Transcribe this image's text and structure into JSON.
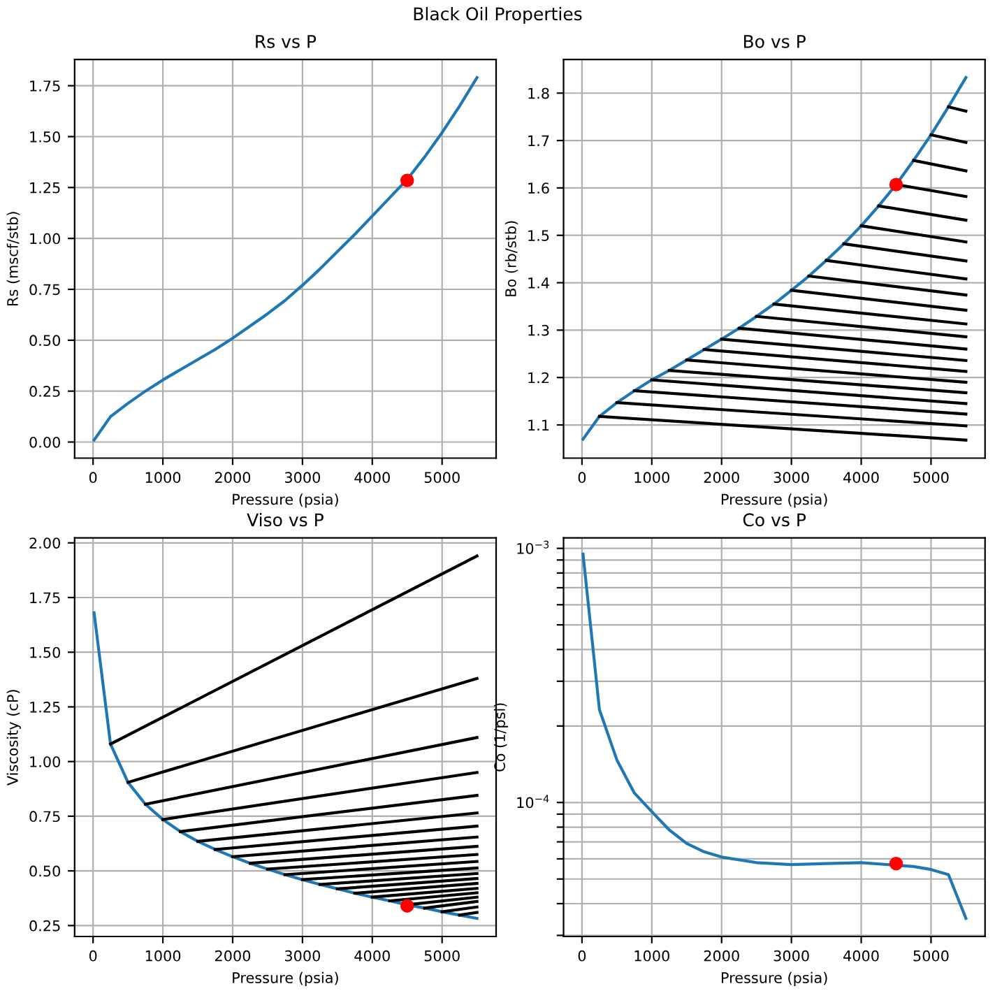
{
  "chart_data": [
    {
      "type": "other",
      "title": "Black Oil Properties"
    },
    {
      "type": "line",
      "title": "Rs vs P",
      "xlabel": "Pressure (psia)",
      "ylabel": "Rs (mscf/stb)",
      "xlim": [
        -264,
        5774
      ],
      "xticks": [
        0,
        1000,
        2000,
        3000,
        4000,
        5000
      ],
      "ylim": [
        -0.079,
        1.879
      ],
      "yticks": [
        {
          "value": 0,
          "label": "0.00"
        },
        {
          "value": 0.25,
          "label": "0.25"
        },
        {
          "value": 0.5,
          "label": "0.50"
        },
        {
          "value": 0.75,
          "label": "0.75"
        },
        {
          "value": 1,
          "label": "1.00"
        },
        {
          "value": 1.25,
          "label": "1.25"
        },
        {
          "value": 1.5,
          "label": "1.50"
        },
        {
          "value": 1.75,
          "label": "1.75"
        }
      ],
      "grid": true,
      "series": [
        {
          "color": "#1f77b4",
          "marker": "none",
          "x": [
            15,
            250,
            500,
            750,
            1000,
            1250,
            1500,
            1750,
            2000,
            2250,
            2500,
            2750,
            3000,
            3250,
            3500,
            3750,
            4000,
            4250,
            4500,
            4750,
            5000,
            5250,
            5500
          ],
          "values": [
            0.01,
            0.125,
            0.19,
            0.25,
            0.305,
            0.355,
            0.405,
            0.455,
            0.51,
            0.57,
            0.63,
            0.695,
            0.77,
            0.85,
            0.935,
            1.02,
            1.11,
            1.2,
            1.29,
            1.4,
            1.52,
            1.65,
            1.79
          ]
        },
        {
          "type": "scatter",
          "marker": "circle",
          "color": "#ff0000",
          "x": [
            4500
          ],
          "values": [
            1.285
          ]
        }
      ]
    },
    {
      "type": "line",
      "title": "Bo vs P",
      "xlabel": "Pressure (psia)",
      "ylabel": "Bo (rb/stb)",
      "xlim": [
        -264,
        5774
      ],
      "xticks": [
        0,
        1000,
        2000,
        3000,
        4000,
        5000
      ],
      "ylim": [
        1.03,
        1.871
      ],
      "yticks": [
        1.1,
        1.2,
        1.3,
        1.4,
        1.5,
        1.6,
        1.7,
        1.8
      ],
      "grid": true,
      "series": [
        {
          "color": "#1f77b4",
          "marker": "none",
          "x": [
            15,
            250,
            500,
            750,
            1000,
            1250,
            1500,
            1750,
            2000,
            2250,
            2500,
            2750,
            3000,
            3250,
            3500,
            3750,
            4000,
            4250,
            4500,
            4750,
            5000,
            5250,
            5500
          ],
          "values": [
            1.07,
            1.118,
            1.147,
            1.172,
            1.195,
            1.215,
            1.237,
            1.259,
            1.281,
            1.304,
            1.329,
            1.355,
            1.384,
            1.414,
            1.447,
            1.482,
            1.52,
            1.562,
            1.607,
            1.658,
            1.712,
            1.771,
            1.833
          ]
        },
        {
          "color": "#000000",
          "marker": "none",
          "x": [
            250,
            5500
          ],
          "values": [
            1.118,
            1.068
          ]
        },
        {
          "color": "#000000",
          "marker": "none",
          "x": [
            500,
            5500
          ],
          "values": [
            1.147,
            1.098
          ]
        },
        {
          "color": "#000000",
          "marker": "none",
          "x": [
            750,
            5500
          ],
          "values": [
            1.172,
            1.123
          ]
        },
        {
          "color": "#000000",
          "marker": "none",
          "x": [
            1000,
            5500
          ],
          "values": [
            1.195,
            1.145
          ]
        },
        {
          "color": "#000000",
          "marker": "none",
          "x": [
            1250,
            5500
          ],
          "values": [
            1.215,
            1.168
          ]
        },
        {
          "color": "#000000",
          "marker": "none",
          "x": [
            1500,
            5500
          ],
          "values": [
            1.237,
            1.19
          ]
        },
        {
          "color": "#000000",
          "marker": "none",
          "x": [
            1750,
            5500
          ],
          "values": [
            1.259,
            1.213
          ]
        },
        {
          "color": "#000000",
          "marker": "none",
          "x": [
            2000,
            5500
          ],
          "values": [
            1.281,
            1.236
          ]
        },
        {
          "color": "#000000",
          "marker": "none",
          "x": [
            2250,
            5500
          ],
          "values": [
            1.304,
            1.26
          ]
        },
        {
          "color": "#000000",
          "marker": "none",
          "x": [
            2500,
            5500
          ],
          "values": [
            1.329,
            1.286
          ]
        },
        {
          "color": "#000000",
          "marker": "none",
          "x": [
            2750,
            5500
          ],
          "values": [
            1.355,
            1.313
          ]
        },
        {
          "color": "#000000",
          "marker": "none",
          "x": [
            3000,
            5500
          ],
          "values": [
            1.384,
            1.342
          ]
        },
        {
          "color": "#000000",
          "marker": "none",
          "x": [
            3250,
            5500
          ],
          "values": [
            1.414,
            1.374
          ]
        },
        {
          "color": "#000000",
          "marker": "none",
          "x": [
            3500,
            5500
          ],
          "values": [
            1.447,
            1.408
          ]
        },
        {
          "color": "#000000",
          "marker": "none",
          "x": [
            3750,
            5500
          ],
          "values": [
            1.482,
            1.446
          ]
        },
        {
          "color": "#000000",
          "marker": "none",
          "x": [
            4000,
            5500
          ],
          "values": [
            1.52,
            1.486
          ]
        },
        {
          "color": "#000000",
          "marker": "none",
          "x": [
            4250,
            5500
          ],
          "values": [
            1.562,
            1.532
          ]
        },
        {
          "color": "#000000",
          "marker": "none",
          "x": [
            4500,
            5500
          ],
          "values": [
            1.607,
            1.582
          ]
        },
        {
          "color": "#000000",
          "marker": "none",
          "x": [
            4750,
            5500
          ],
          "values": [
            1.658,
            1.636
          ]
        },
        {
          "color": "#000000",
          "marker": "none",
          "x": [
            5000,
            5500
          ],
          "values": [
            1.712,
            1.696
          ]
        },
        {
          "color": "#000000",
          "marker": "none",
          "x": [
            5250,
            5500
          ],
          "values": [
            1.771,
            1.762
          ]
        },
        {
          "type": "scatter",
          "marker": "circle",
          "color": "#ff0000",
          "x": [
            4500
          ],
          "values": [
            1.607
          ]
        }
      ]
    },
    {
      "type": "line",
      "title": "Viso vs P",
      "xlabel": "Pressure (psia)",
      "ylabel": "Viscosity (cP)",
      "xlim": [
        -264,
        5774
      ],
      "xticks": [
        0,
        1000,
        2000,
        3000,
        4000,
        5000
      ],
      "ylim": [
        0.2,
        2.023
      ],
      "yticks": [
        {
          "value": 0.25,
          "label": "0.25"
        },
        {
          "value": 0.5,
          "label": "0.50"
        },
        {
          "value": 0.75,
          "label": "0.75"
        },
        {
          "value": 1,
          "label": "1.00"
        },
        {
          "value": 1.25,
          "label": "1.25"
        },
        {
          "value": 1.5,
          "label": "1.50"
        },
        {
          "value": 1.75,
          "label": "1.75"
        },
        {
          "value": 2,
          "label": "2.00"
        }
      ],
      "grid": true,
      "series": [
        {
          "color": "#1f77b4",
          "marker": "none",
          "x": [
            15,
            250,
            500,
            750,
            1000,
            1250,
            1500,
            1750,
            2000,
            2250,
            2500,
            2750,
            3000,
            3250,
            3500,
            3750,
            4000,
            4250,
            4500,
            4750,
            5000,
            5250,
            5500
          ],
          "values": [
            1.68,
            1.08,
            0.905,
            0.805,
            0.735,
            0.68,
            0.635,
            0.598,
            0.565,
            0.535,
            0.508,
            0.483,
            0.46,
            0.438,
            0.418,
            0.398,
            0.38,
            0.363,
            0.345,
            0.33,
            0.313,
            0.298,
            0.283
          ]
        },
        {
          "color": "#000000",
          "marker": "none",
          "x": [
            250,
            5500
          ],
          "values": [
            1.08,
            1.94
          ]
        },
        {
          "color": "#000000",
          "marker": "none",
          "x": [
            500,
            5500
          ],
          "values": [
            0.905,
            1.38
          ]
        },
        {
          "color": "#000000",
          "marker": "none",
          "x": [
            750,
            5500
          ],
          "values": [
            0.805,
            1.11
          ]
        },
        {
          "color": "#000000",
          "marker": "none",
          "x": [
            1000,
            5500
          ],
          "values": [
            0.735,
            0.95
          ]
        },
        {
          "color": "#000000",
          "marker": "none",
          "x": [
            1250,
            5500
          ],
          "values": [
            0.68,
            0.845
          ]
        },
        {
          "color": "#000000",
          "marker": "none",
          "x": [
            1500,
            5500
          ],
          "values": [
            0.635,
            0.765
          ]
        },
        {
          "color": "#000000",
          "marker": "none",
          "x": [
            1750,
            5500
          ],
          "values": [
            0.598,
            0.705
          ]
        },
        {
          "color": "#000000",
          "marker": "none",
          "x": [
            2000,
            5500
          ],
          "values": [
            0.565,
            0.655
          ]
        },
        {
          "color": "#000000",
          "marker": "none",
          "x": [
            2250,
            5500
          ],
          "values": [
            0.535,
            0.612
          ]
        },
        {
          "color": "#000000",
          "marker": "none",
          "x": [
            2500,
            5500
          ],
          "values": [
            0.508,
            0.575
          ]
        },
        {
          "color": "#000000",
          "marker": "none",
          "x": [
            2750,
            5500
          ],
          "values": [
            0.483,
            0.543
          ]
        },
        {
          "color": "#000000",
          "marker": "none",
          "x": [
            3000,
            5500
          ],
          "values": [
            0.46,
            0.513
          ]
        },
        {
          "color": "#000000",
          "marker": "none",
          "x": [
            3250,
            5500
          ],
          "values": [
            0.438,
            0.488
          ]
        },
        {
          "color": "#000000",
          "marker": "none",
          "x": [
            3500,
            5500
          ],
          "values": [
            0.418,
            0.465
          ]
        },
        {
          "color": "#000000",
          "marker": "none",
          "x": [
            3750,
            5500
          ],
          "values": [
            0.398,
            0.443
          ]
        },
        {
          "color": "#000000",
          "marker": "none",
          "x": [
            4000,
            5500
          ],
          "values": [
            0.38,
            0.42
          ]
        },
        {
          "color": "#000000",
          "marker": "none",
          "x": [
            4250,
            5500
          ],
          "values": [
            0.363,
            0.4
          ]
        },
        {
          "color": "#000000",
          "marker": "none",
          "x": [
            4500,
            5500
          ],
          "values": [
            0.345,
            0.38
          ]
        },
        {
          "color": "#000000",
          "marker": "none",
          "x": [
            4750,
            5500
          ],
          "values": [
            0.33,
            0.36
          ]
        },
        {
          "color": "#000000",
          "marker": "none",
          "x": [
            5000,
            5500
          ],
          "values": [
            0.313,
            0.335
          ]
        },
        {
          "color": "#000000",
          "marker": "none",
          "x": [
            5250,
            5500
          ],
          "values": [
            0.298,
            0.31
          ]
        },
        {
          "type": "scatter",
          "marker": "circle",
          "color": "#ff0000",
          "x": [
            4500
          ],
          "values": [
            0.34
          ]
        }
      ]
    },
    {
      "type": "line",
      "title": "Co vs P",
      "xlabel": "Pressure (psia)",
      "ylabel": "Co (1/psi)",
      "log": "y",
      "xlim": [
        -264,
        5774
      ],
      "xticks": [
        0,
        1000,
        2000,
        3000,
        4000,
        5000
      ],
      "ylim": [
        2.97e-05,
        0.0011
      ],
      "yticks": [
        {
          "value": 3e-05,
          "label": null
        },
        {
          "value": 4e-05,
          "label": null
        },
        {
          "value": 5e-05,
          "label": null
        },
        {
          "value": 6e-05,
          "label": null
        },
        {
          "value": 7e-05,
          "label": null
        },
        {
          "value": 8e-05,
          "label": null
        },
        {
          "value": 9e-05,
          "label": null
        },
        {
          "value": 0.0001,
          "label": "10$^{−4}$"
        },
        {
          "value": 0.0002,
          "label": null
        },
        {
          "value": 0.0003,
          "label": null
        },
        {
          "value": 0.0004,
          "label": null
        },
        {
          "value": 0.0005,
          "label": null
        },
        {
          "value": 0.0006,
          "label": null
        },
        {
          "value": 0.0007,
          "label": null
        },
        {
          "value": 0.0008,
          "label": null
        },
        {
          "value": 0.0009,
          "label": null
        },
        {
          "value": 0.001,
          "label": "10$^{−3}$"
        }
      ],
      "grid": true,
      "series": [
        {
          "color": "#1f77b4",
          "marker": "none",
          "x": [
            15,
            250,
            500,
            750,
            1000,
            1250,
            1500,
            1750,
            2000,
            2500,
            3000,
            3500,
            4000,
            4750,
            5000,
            5250,
            5500
          ],
          "values": [
            0.00095,
            0.000232,
            0.000147,
            0.000109,
            9.2e-05,
            7.8e-05,
            6.9e-05,
            6.4e-05,
            6.1e-05,
            5.8e-05,
            5.7e-05,
            5.75e-05,
            5.8e-05,
            5.6e-05,
            5.45e-05,
            5.2e-05,
            3.5e-05
          ]
        },
        {
          "type": "scatter",
          "marker": "circle",
          "color": "#ff0000",
          "x": [
            4500
          ],
          "values": [
            5.75e-05
          ]
        }
      ]
    }
  ]
}
